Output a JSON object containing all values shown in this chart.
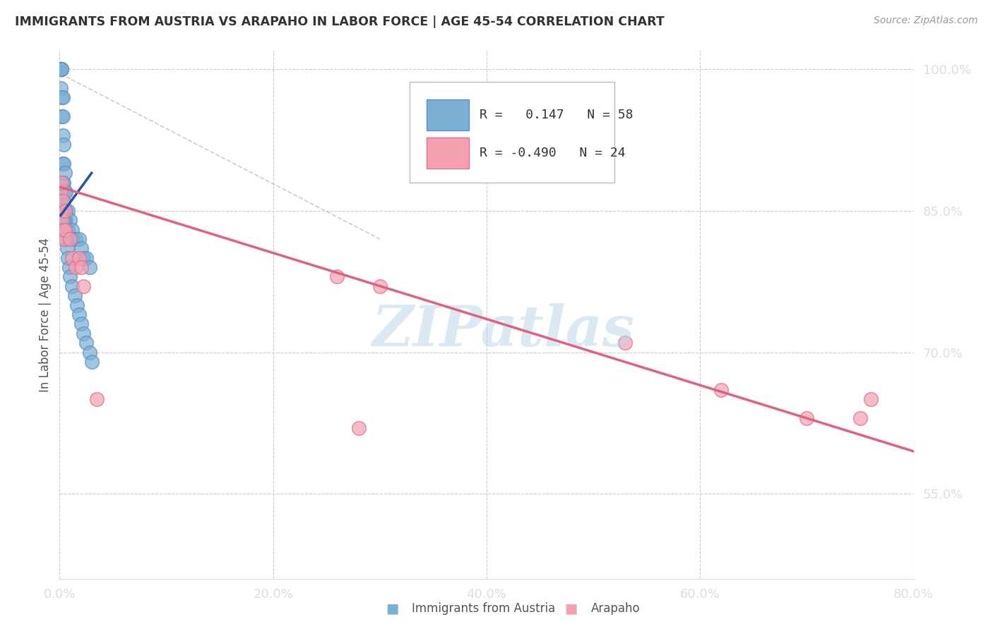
{
  "title": "IMMIGRANTS FROM AUSTRIA VS ARAPAHO IN LABOR FORCE | AGE 45-54 CORRELATION CHART",
  "source": "Source: ZipAtlas.com",
  "ylabel": "In Labor Force | Age 45-54",
  "legend_labels": [
    "Immigrants from Austria",
    "Arapaho"
  ],
  "legend_r_blue": "R =   0.147",
  "legend_n_blue": "N = 58",
  "legend_r_pink": "R = -0.490",
  "legend_n_pink": "N = 24",
  "blue_color": "#7BAFD4",
  "blue_edge_color": "#5B8FC4",
  "pink_color": "#F4A0B0",
  "pink_edge_color": "#E07090",
  "blue_line_color": "#2255AA",
  "pink_line_color": "#E06080",
  "watermark": "ZIPatlas",
  "watermark_color": "#B8D4E8",
  "xlim": [
    0.0,
    0.8
  ],
  "ylim": [
    0.46,
    1.02
  ],
  "xticks": [
    0.0,
    0.2,
    0.4,
    0.6,
    0.8
  ],
  "yticks": [
    0.55,
    0.7,
    0.85,
    1.0
  ],
  "xticklabels": [
    "0.0%",
    "20.0%",
    "40.0%",
    "60.0%",
    "80.0%"
  ],
  "yticklabels": [
    "55.0%",
    "70.0%",
    "85.0%",
    "100.0%"
  ],
  "blue_scatter_x": [
    0.001,
    0.001,
    0.001,
    0.001,
    0.001,
    0.001,
    0.001,
    0.002,
    0.002,
    0.002,
    0.002,
    0.003,
    0.003,
    0.003,
    0.003,
    0.003,
    0.004,
    0.004,
    0.004,
    0.004,
    0.005,
    0.005,
    0.005,
    0.005,
    0.005,
    0.006,
    0.006,
    0.006,
    0.008,
    0.008,
    0.01,
    0.01,
    0.012,
    0.012,
    0.015,
    0.018,
    0.02,
    0.022,
    0.025,
    0.028,
    0.002,
    0.003,
    0.004,
    0.005,
    0.006,
    0.007,
    0.008,
    0.009,
    0.01,
    0.012,
    0.014,
    0.016,
    0.018,
    0.02,
    0.022,
    0.025,
    0.028,
    0.03
  ],
  "blue_scatter_y": [
    1.0,
    1.0,
    1.0,
    1.0,
    1.0,
    1.0,
    0.98,
    1.0,
    1.0,
    0.97,
    0.95,
    0.97,
    0.95,
    0.93,
    0.9,
    0.88,
    0.92,
    0.9,
    0.88,
    0.86,
    0.89,
    0.87,
    0.85,
    0.84,
    0.83,
    0.87,
    0.85,
    0.84,
    0.85,
    0.83,
    0.84,
    0.82,
    0.83,
    0.82,
    0.82,
    0.82,
    0.81,
    0.8,
    0.8,
    0.79,
    0.86,
    0.85,
    0.84,
    0.83,
    0.82,
    0.81,
    0.8,
    0.79,
    0.78,
    0.77,
    0.76,
    0.75,
    0.74,
    0.73,
    0.72,
    0.71,
    0.7,
    0.69
  ],
  "pink_scatter_x": [
    0.001,
    0.001,
    0.002,
    0.002,
    0.003,
    0.004,
    0.004,
    0.005,
    0.005,
    0.01,
    0.012,
    0.015,
    0.018,
    0.02,
    0.022,
    0.035,
    0.26,
    0.3,
    0.53,
    0.62,
    0.7,
    0.75,
    0.76,
    0.28
  ],
  "pink_scatter_y": [
    0.87,
    0.85,
    0.88,
    0.84,
    0.86,
    0.83,
    0.82,
    0.85,
    0.83,
    0.82,
    0.8,
    0.79,
    0.8,
    0.79,
    0.77,
    0.65,
    0.78,
    0.77,
    0.71,
    0.66,
    0.63,
    0.63,
    0.65,
    0.62
  ],
  "blue_line_x": [
    0.001,
    0.03
  ],
  "blue_line_y": [
    0.845,
    0.89
  ],
  "pink_line_x": [
    0.001,
    0.8
  ],
  "pink_line_y": [
    0.875,
    0.595
  ],
  "diag_line_x": [
    0.001,
    0.3
  ],
  "diag_line_y": [
    0.995,
    0.82
  ],
  "bg_color": "#FFFFFF",
  "grid_color": "#CCCCCC",
  "tick_color": "#3399FF",
  "title_color": "#333333",
  "source_color": "#999999"
}
